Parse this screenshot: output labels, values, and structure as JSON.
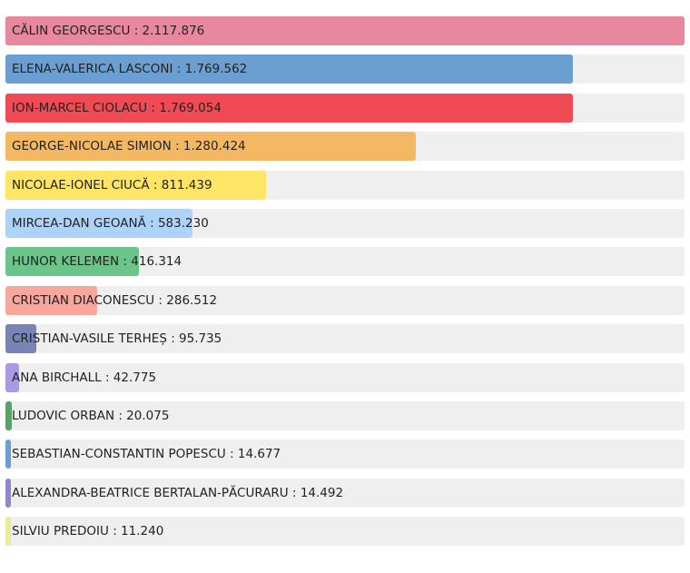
{
  "chart_data": {
    "type": "bar",
    "orientation": "horizontal",
    "xlim": [
      0,
      2117876
    ],
    "grid": false,
    "legend": "none",
    "bars": [
      {
        "label": "CĂLIN GEORGESCU : 2.117.876",
        "category": "CĂLIN GEORGESCU",
        "value": 2117876,
        "color": "#e8889e"
      },
      {
        "label": "ELENA-VALERICA LASCONI : 1.769.562",
        "category": "ELENA-VALERICA LASCONI",
        "value": 1769562,
        "color": "#6b9fd1"
      },
      {
        "label": "ION-MARCEL CIOLACU : 1.769.054",
        "category": "ION-MARCEL CIOLACU",
        "value": 1769054,
        "color": "#f04b55"
      },
      {
        "label": "GEORGE-NICOLAE SIMION : 1.280.424",
        "category": "GEORGE-NICOLAE SIMION",
        "value": 1280424,
        "color": "#f4b862"
      },
      {
        "label": "NICOLAE-IONEL CIUCĂ : 811.439",
        "category": "NICOLAE-IONEL CIUCĂ",
        "value": 811439,
        "color": "#fee565"
      },
      {
        "label": "MIRCEA-DAN GEOANĂ : 583.230",
        "category": "MIRCEA-DAN GEOANĂ",
        "value": 583230,
        "color": "#add4f8"
      },
      {
        "label": "HUNOR KELEMEN : 416.314",
        "category": "HUNOR KELEMEN",
        "value": 416314,
        "color": "#6bc48a"
      },
      {
        "label": "CRISTIAN DIACONESCU : 286.512",
        "category": "CRISTIAN DIACONESCU",
        "value": 286512,
        "color": "#f9a79c"
      },
      {
        "label": "CRISTIAN-VASILE TERHEȘ : 95.735",
        "category": "CRISTIAN-VASILE TERHEȘ",
        "value": 95735,
        "color": "#7784b4"
      },
      {
        "label": "ANA BIRCHALL : 42.775",
        "category": "ANA BIRCHALL",
        "value": 42775,
        "color": "#a99ae3"
      },
      {
        "label": "LUDOVIC ORBAN : 20.075",
        "category": "LUDOVIC ORBAN",
        "value": 20075,
        "color": "#5aa06a"
      },
      {
        "label": "SEBASTIAN-CONSTANTIN POPESCU : 14.677",
        "category": "SEBASTIAN-CONSTANTIN POPESCU",
        "value": 14677,
        "color": "#6b9fd1"
      },
      {
        "label": "ALEXANDRA-BEATRICE BERTALAN-PĂCURARU : 14.492",
        "category": "ALEXANDRA-BEATRICE BERTALAN-PĂCURARU",
        "value": 14492,
        "color": "#8b88cc"
      },
      {
        "label": "SILVIU PREDOIU : 11.240",
        "category": "SILVIU PREDOIU",
        "value": 11240,
        "color": "#e6ec9a"
      }
    ]
  }
}
